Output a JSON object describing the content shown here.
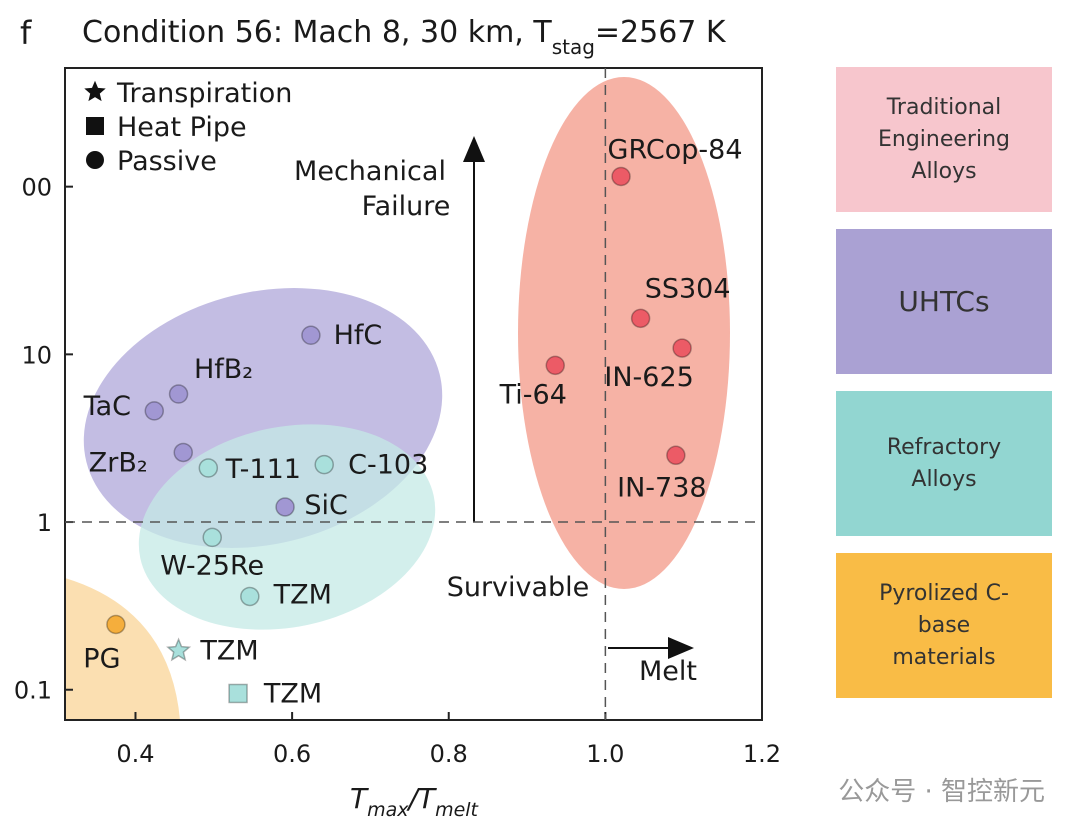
{
  "chart_data": {
    "type": "scatter",
    "panel_label": "f",
    "title_parts": [
      "Condition 56: Mach 8, 30 km, T",
      "stag",
      "=2567 K"
    ],
    "x_label_parts": [
      "T",
      "max",
      "/T",
      "melt"
    ],
    "log_y": true,
    "xlim": [
      0.31,
      1.2
    ],
    "xticks": [
      0.4,
      0.6,
      0.8,
      {
        "value": 1,
        "label": "1.0"
      },
      1.2
    ],
    "ylim": [
      0.066,
      510
    ],
    "yticks": [
      0.1,
      1,
      10,
      {
        "value": 100,
        "label": "00"
      }
    ],
    "reference_lines": {
      "x": 1,
      "y": 1
    },
    "marker_legend": [
      {
        "name": "Transpiration",
        "marker": "star"
      },
      {
        "name": "Heat Pipe",
        "marker": "square"
      },
      {
        "name": "Passive",
        "marker": "circle"
      }
    ],
    "annotations": [
      "Mechanical",
      "Failure",
      "Survivable",
      "Melt"
    ],
    "series": [
      {
        "name": "Traditional Engineering Alloys",
        "color": "#ec5b66",
        "legend_color": "#f7c6cd",
        "labels": [
          "GRCop-84",
          "SS304",
          "IN-625",
          "Ti-64",
          "IN-738"
        ],
        "x": [
          1.02,
          1.045,
          1.098,
          0.936,
          1.09
        ],
        "values": [
          115,
          16.4,
          10.9,
          8.6,
          2.5
        ],
        "markers": [
          "circle",
          "circle",
          "circle",
          "circle",
          "circle"
        ]
      },
      {
        "name": "UHTCs",
        "color": "#a197d3",
        "legend_color": "#aaa1d3",
        "labels": [
          "HfC",
          "HfB₂",
          "TaC",
          "ZrB₂",
          "SiC"
        ],
        "x": [
          0.624,
          0.455,
          0.424,
          0.461,
          0.591
        ],
        "values": [
          13,
          5.8,
          4.6,
          2.6,
          1.23
        ],
        "markers": [
          "circle",
          "circle",
          "circle",
          "circle",
          "circle"
        ]
      },
      {
        "name": "Refractory Alloys",
        "color": "#a9e0dc",
        "legend_color": "#92d6d1",
        "labels": [
          "T-111",
          "C-103",
          "W-25Re",
          "TZM",
          "TZM",
          "TZM"
        ],
        "x": [
          0.493,
          0.641,
          0.498,
          0.546,
          0.455,
          0.531
        ],
        "values": [
          2.1,
          2.2,
          0.81,
          0.36,
          0.171,
          0.095
        ],
        "markers": [
          "circle",
          "circle",
          "circle",
          "circle",
          "star",
          "square"
        ]
      },
      {
        "name": "Pyrolized C-base materials",
        "color": "#f5ae3c",
        "legend_color": "#f9bc46",
        "labels": [
          "PG"
        ],
        "x": [
          0.375
        ],
        "values": [
          0.245
        ],
        "markers": [
          "circle"
        ]
      }
    ],
    "watermark": "公众号 · 智控新元"
  }
}
